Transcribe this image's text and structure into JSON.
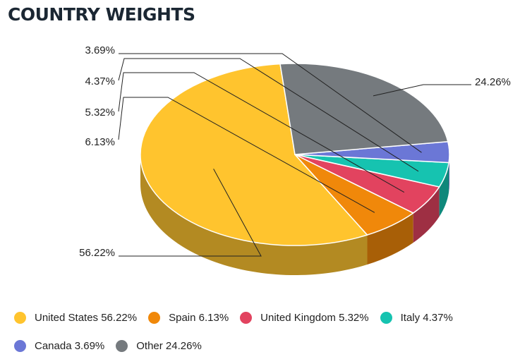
{
  "title": "COUNTRY WEIGHTS",
  "chart_data": {
    "type": "pie",
    "title": "COUNTRY WEIGHTS",
    "three_d": true,
    "legend_position": "bottom",
    "slices": [
      {
        "label": "United States",
        "value": 56.22,
        "pct_label": "56.22%",
        "legend": "United States 56.22%",
        "color": "#ffc42e",
        "side_color": "#b38a22"
      },
      {
        "label": "Spain",
        "value": 6.13,
        "pct_label": "6.13%",
        "legend": "Spain 6.13%",
        "color": "#f0880a",
        "side_color": "#a85f07"
      },
      {
        "label": "United Kingdom",
        "value": 5.32,
        "pct_label": "5.32%",
        "legend": "United Kingdom 5.32%",
        "color": "#e2435f",
        "side_color": "#9e2f43"
      },
      {
        "label": "Italy",
        "value": 4.37,
        "pct_label": "4.37%",
        "legend": "Italy 4.37%",
        "color": "#16c3b0",
        "side_color": "#0f887b"
      },
      {
        "label": "Canada",
        "value": 3.69,
        "pct_label": "3.69%",
        "legend": "Canada 3.69%",
        "color": "#6b77d6",
        "side_color": "#4b5396"
      },
      {
        "label": "Other",
        "value": 24.26,
        "pct_label": "24.26%",
        "legend": "Other 24.26%",
        "color": "#757a7e",
        "side_color": "#52555a"
      }
    ]
  }
}
